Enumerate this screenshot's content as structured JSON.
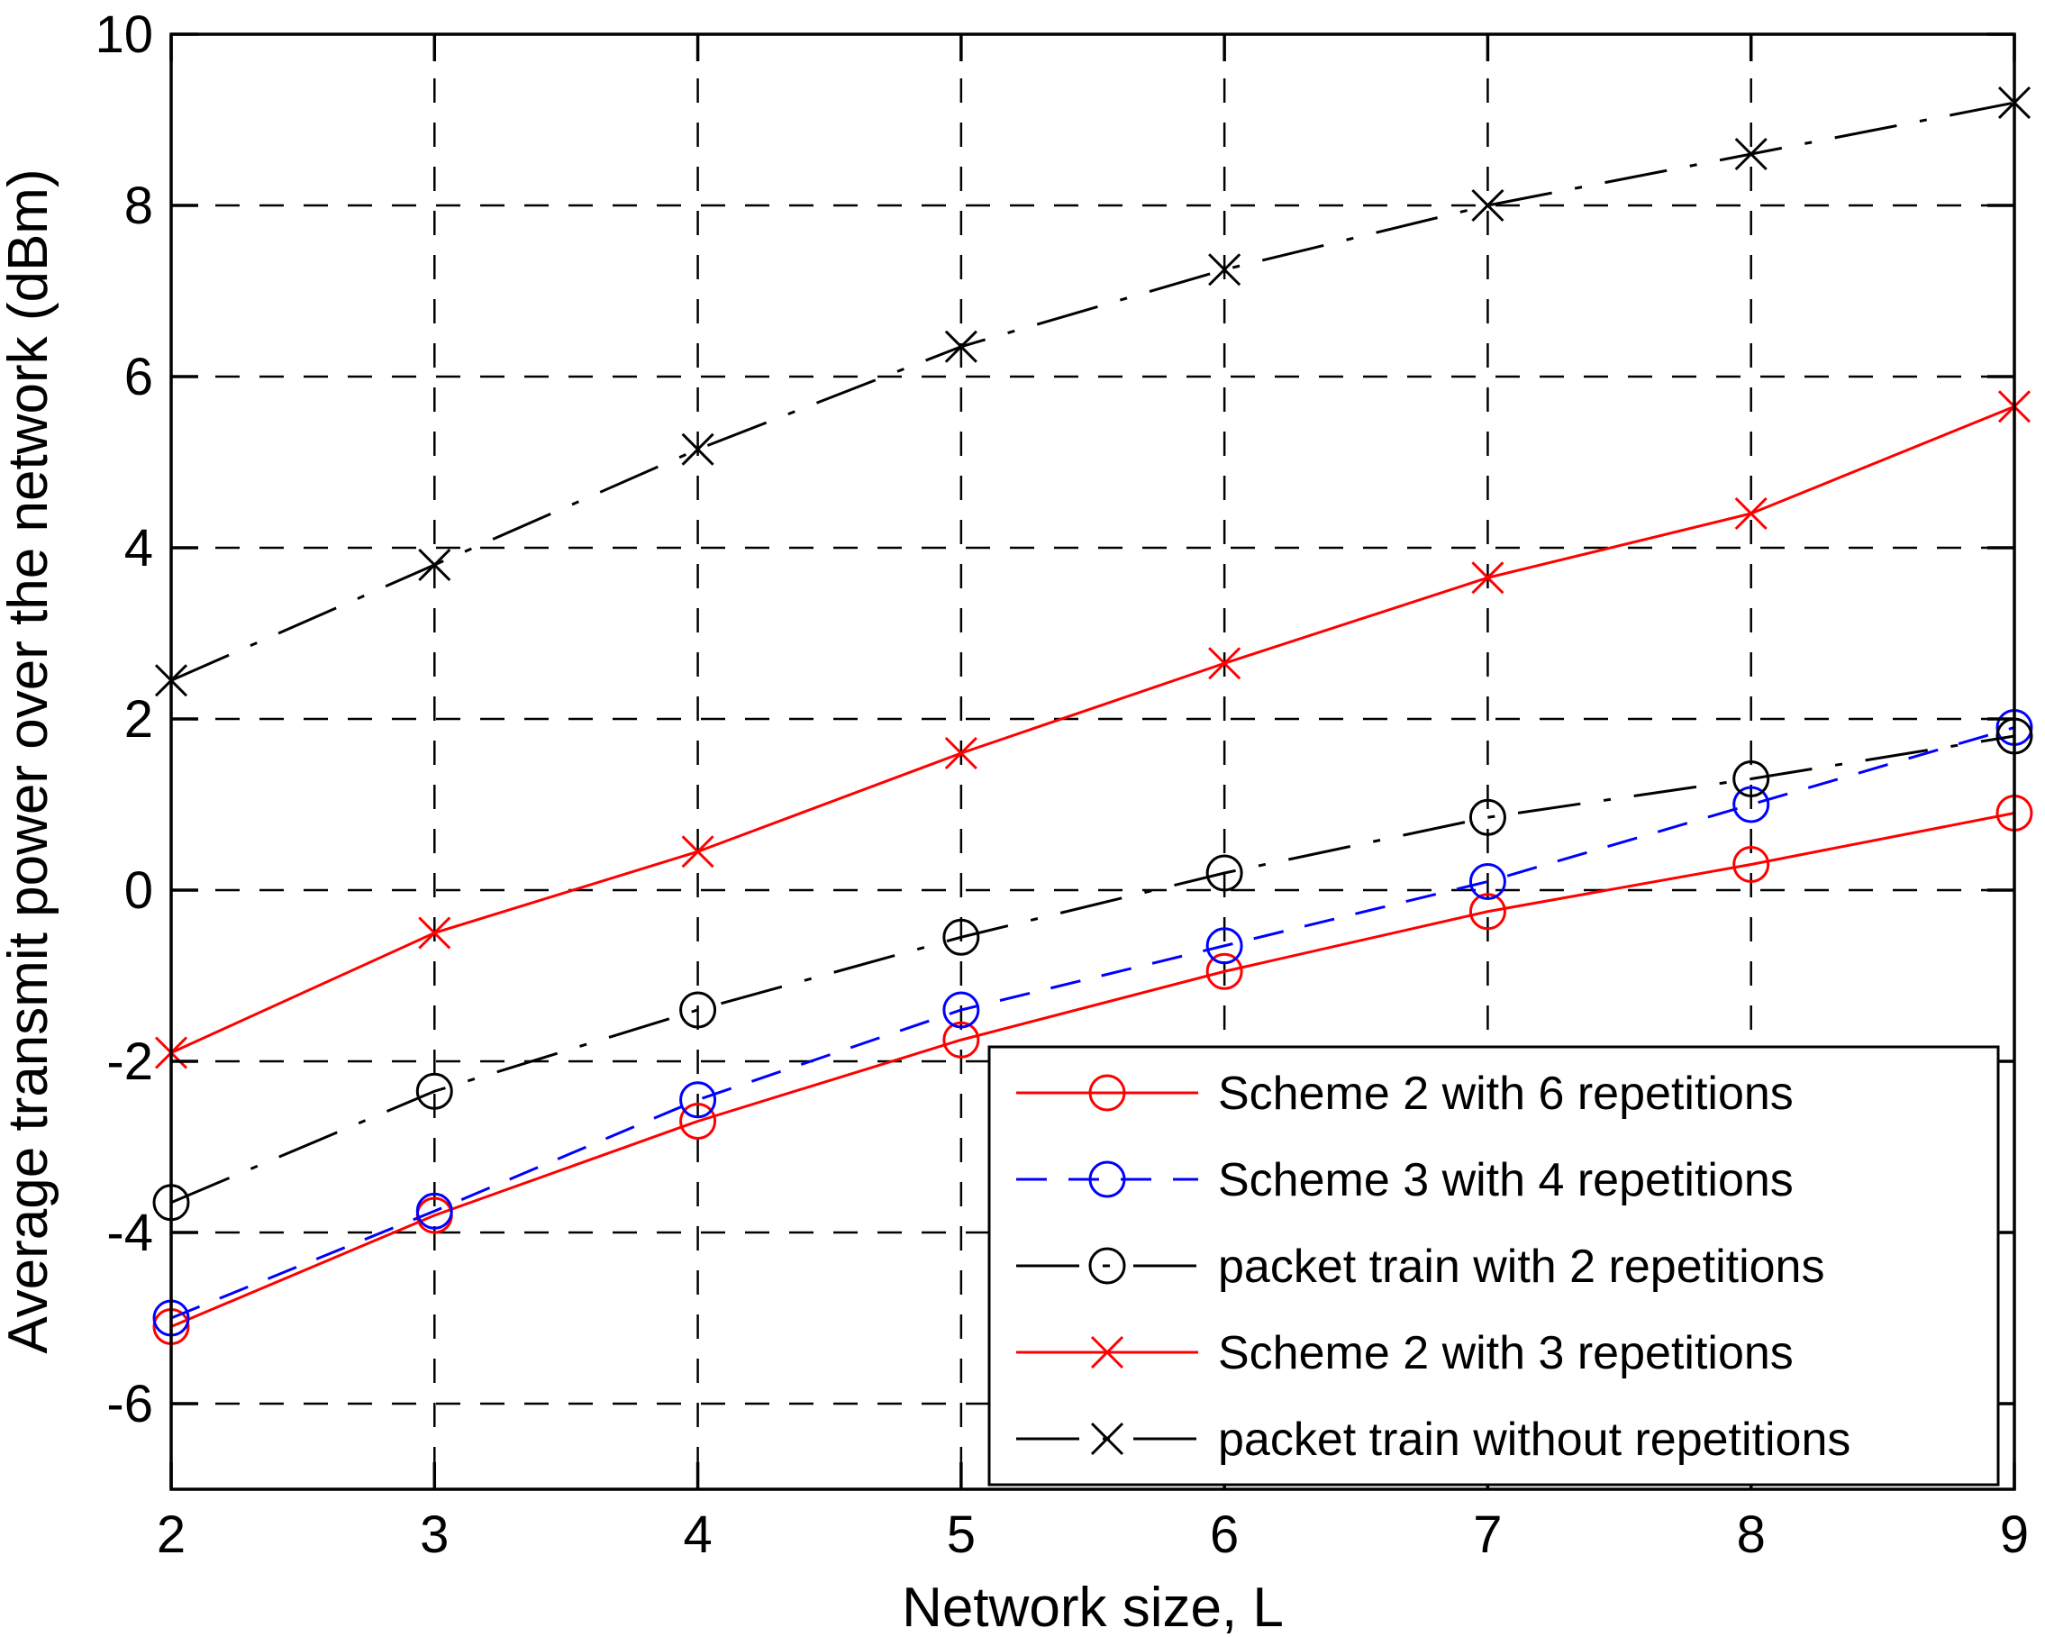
{
  "figure": {
    "background": "#ffffff",
    "axis_color": "#000000",
    "grid": true,
    "grid_style": "dashed"
  },
  "chart_data": {
    "type": "line",
    "title": "",
    "xlabel": "Network size, L",
    "ylabel": "Average transmit power over the network (dBm)",
    "xlim": [
      2,
      9
    ],
    "ylim": [
      -7,
      10
    ],
    "x_ticks": [
      2,
      3,
      4,
      5,
      6,
      7,
      8,
      9
    ],
    "x_tick_labels": [
      "2",
      "3",
      "4",
      "5",
      "6",
      "7",
      "8",
      "9"
    ],
    "y_ticks": [
      -6,
      -4,
      -2,
      0,
      2,
      4,
      6,
      8,
      10
    ],
    "y_tick_labels": [
      "-6",
      "-4",
      "-2",
      "0",
      "2",
      "4",
      "6",
      "8",
      "10"
    ],
    "grid": true,
    "legend_position": "inside-lower-right",
    "x": [
      2,
      3,
      4,
      5,
      6,
      7,
      8,
      9
    ],
    "series": [
      {
        "name": "Scheme 2 with 6 repetitions",
        "color": "#ff0000",
        "line": "solid",
        "marker": "circle",
        "values": [
          -5.1,
          -3.8,
          -2.7,
          -1.75,
          -0.95,
          -0.25,
          0.3,
          0.9
        ]
      },
      {
        "name": "Scheme 3 with 4 repetitions",
        "color": "#0000ff",
        "line": "dashed",
        "marker": "circle",
        "values": [
          -5.0,
          -3.75,
          -2.45,
          -1.4,
          -0.65,
          0.1,
          1.0,
          1.9
        ]
      },
      {
        "name": "packet train with 2 repetitions",
        "color": "#000000",
        "line": "dashdot",
        "marker": "circle",
        "values": [
          -3.65,
          -2.35,
          -1.4,
          -0.55,
          0.2,
          0.85,
          1.3,
          1.8
        ]
      },
      {
        "name": "Scheme 2 with 3 repetitions",
        "color": "#ff0000",
        "line": "solid",
        "marker": "x",
        "values": [
          -1.9,
          -0.5,
          0.45,
          1.6,
          2.65,
          3.65,
          4.4,
          5.65
        ]
      },
      {
        "name": "packet train without repetitions",
        "color": "#000000",
        "line": "dashdot",
        "marker": "x",
        "values": [
          2.45,
          3.8,
          5.15,
          6.35,
          7.25,
          8.0,
          8.6,
          9.2
        ]
      }
    ]
  }
}
